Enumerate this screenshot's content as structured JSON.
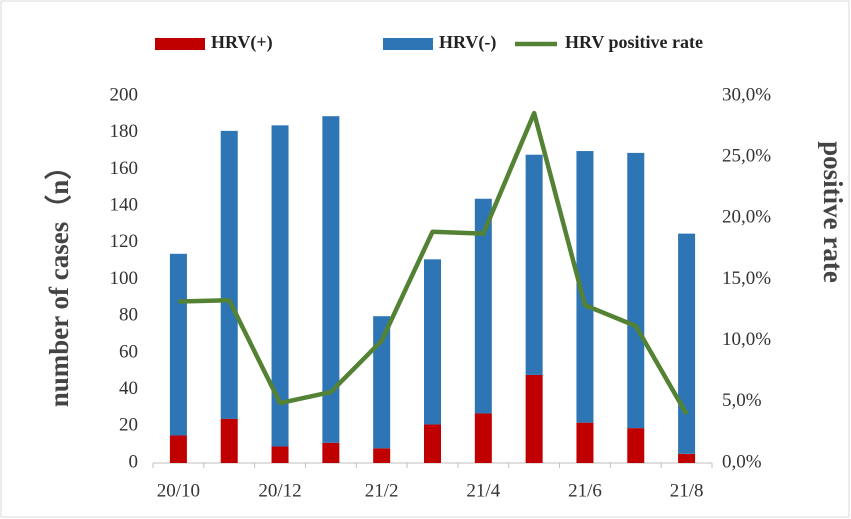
{
  "chart_data": {
    "type": "bar-line",
    "categories": [
      "20/10",
      null,
      "20/12",
      null,
      "21/2",
      null,
      "21/4",
      null,
      "21/6",
      null,
      "21/8"
    ],
    "series": [
      {
        "name": "HRV(+)",
        "color": "#c00000",
        "values": [
          15,
          24,
          9,
          11,
          8,
          21,
          27,
          48,
          22,
          19,
          5
        ]
      },
      {
        "name": "HRV(-)",
        "color": "#2e75b6",
        "values": [
          99,
          157,
          175,
          178,
          72,
          90,
          117,
          120,
          148,
          150,
          120
        ]
      },
      {
        "name": "HRV positive rate",
        "color": "#548235",
        "axis": "y2",
        "values": [
          13.2,
          13.3,
          4.9,
          5.8,
          10.0,
          18.9,
          18.75,
          28.6,
          12.9,
          11.2,
          4.0
        ]
      }
    ],
    "ylabel": "number of cases（n）",
    "y2label": "positive rate",
    "ylim": [
      0,
      200
    ],
    "yticks": [
      0,
      20,
      40,
      60,
      80,
      100,
      120,
      140,
      160,
      180,
      200
    ],
    "y2lim": [
      0,
      30
    ],
    "y2ticks": [
      {
        "value": 0,
        "label": "0,0%"
      },
      {
        "value": 5,
        "label": "5,0%"
      },
      {
        "value": 10,
        "label": "10,0%"
      },
      {
        "value": 15,
        "label": "15,0%"
      },
      {
        "value": 20,
        "label": "20,0%"
      },
      {
        "value": 25,
        "label": "25,0%"
      },
      {
        "value": 30,
        "label": "30,0%"
      }
    ],
    "legend": "top"
  }
}
